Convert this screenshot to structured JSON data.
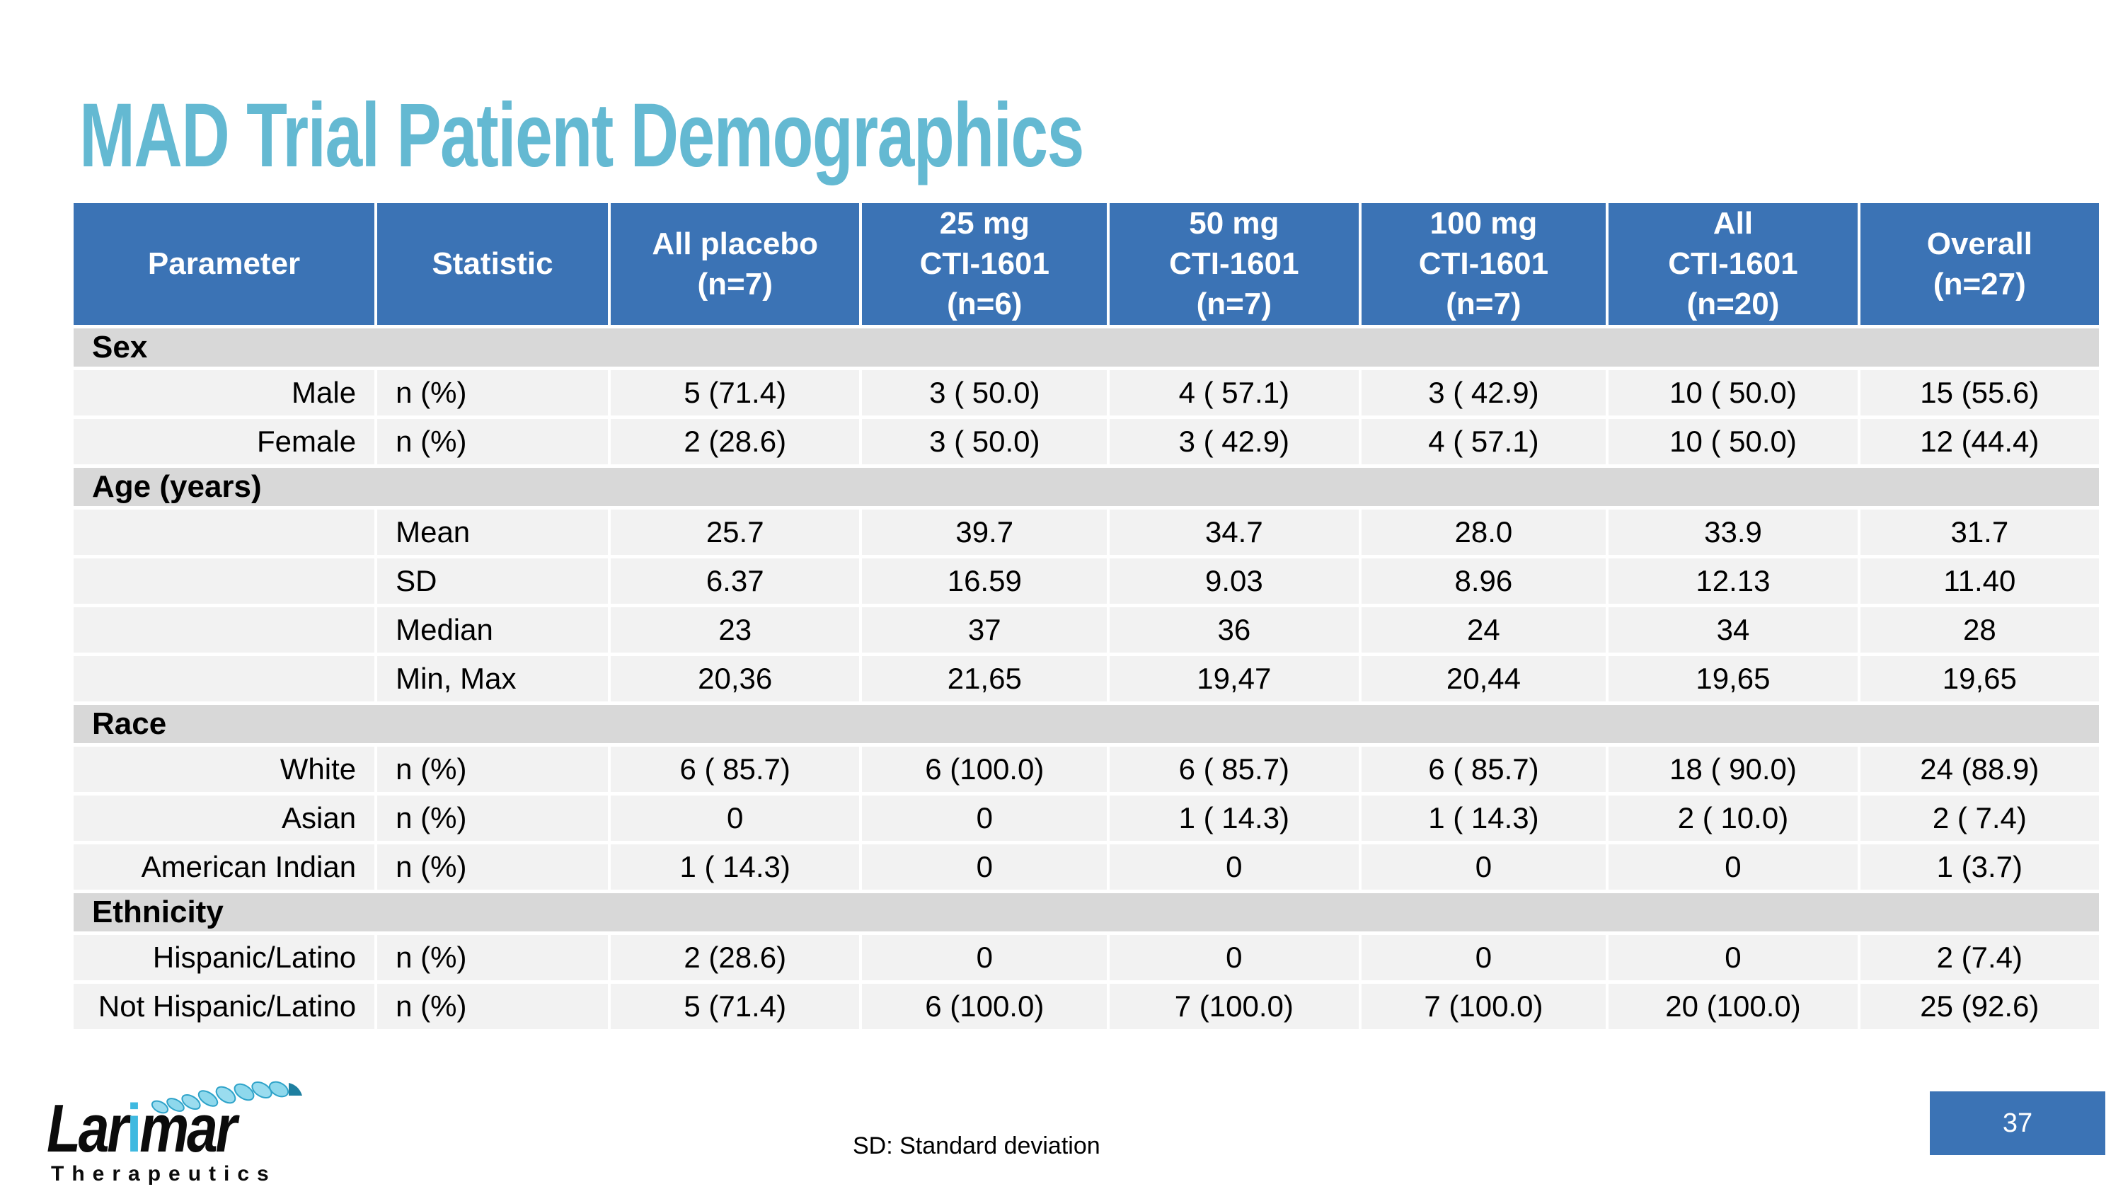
{
  "slide": {
    "title": "MAD Trial Patient Demographics",
    "footnote": "SD: Standard deviation",
    "page_number": "37"
  },
  "logo": {
    "name_pre": "Lar",
    "name_i": "i",
    "name_post": "mar",
    "tagline": "Therapeutics",
    "helix_icon": "dna-coil-icon"
  },
  "colors": {
    "header_blue": "#3B73B5",
    "title_teal": "#64B9D2",
    "section_band_gray": "#D8D8D8",
    "row_gray": "#F2F2F2",
    "logo_cyan": "#3FB9E0"
  },
  "table": {
    "columns": [
      "Parameter",
      "Statistic",
      "All placebo\n(n=7)",
      "25 mg\nCTI-1601\n(n=6)",
      "50 mg\nCTI-1601\n(n=7)",
      "100 mg\nCTI-1601\n(n=7)",
      "All\nCTI-1601\n(n=20)",
      "Overall\n(n=27)"
    ],
    "sections": [
      {
        "label": "Sex",
        "rows": [
          {
            "parameter": "Male",
            "statistic": "n (%)",
            "values": [
              "5 (71.4)",
              "3 ( 50.0)",
              "4 ( 57.1)",
              "3 ( 42.9)",
              "10 ( 50.0)",
              "15 (55.6)"
            ]
          },
          {
            "parameter": "Female",
            "statistic": "n (%)",
            "values": [
              "2 (28.6)",
              "3 ( 50.0)",
              "3 ( 42.9)",
              "4 ( 57.1)",
              "10 ( 50.0)",
              "12 (44.4)"
            ]
          }
        ]
      },
      {
        "label": "Age (years)",
        "rows": [
          {
            "parameter": "",
            "statistic": "Mean",
            "values": [
              "25.7",
              "39.7",
              "34.7",
              "28.0",
              "33.9",
              "31.7"
            ]
          },
          {
            "parameter": "",
            "statistic": "SD",
            "values": [
              "6.37",
              "16.59",
              "9.03",
              "8.96",
              "12.13",
              "11.40"
            ]
          },
          {
            "parameter": "",
            "statistic": "Median",
            "values": [
              "23",
              "37",
              "36",
              "24",
              "34",
              "28"
            ]
          },
          {
            "parameter": "",
            "statistic": "Min, Max",
            "values": [
              "20,36",
              "21,65",
              "19,47",
              "20,44",
              "19,65",
              "19,65"
            ]
          }
        ]
      },
      {
        "label": "Race",
        "rows": [
          {
            "parameter": "White",
            "statistic": "n (%)",
            "values": [
              "6 ( 85.7)",
              "6 (100.0)",
              "6 ( 85.7)",
              "6 ( 85.7)",
              "18 ( 90.0)",
              "24 (88.9)"
            ]
          },
          {
            "parameter": "Asian",
            "statistic": "n (%)",
            "values": [
              "0",
              "0",
              "1 ( 14.3)",
              "1 ( 14.3)",
              "2 ( 10.0)",
              "2 ( 7.4)"
            ]
          },
          {
            "parameter": "American Indian",
            "statistic": "n (%)",
            "values": [
              "1 ( 14.3)",
              "0",
              "0",
              "0",
              "0",
              "1 (3.7)"
            ]
          }
        ]
      },
      {
        "label": "Ethnicity",
        "rows": [
          {
            "parameter": "Hispanic/Latino",
            "statistic": "n (%)",
            "values": [
              "2 (28.6)",
              "0",
              "0",
              "0",
              "0",
              "2 (7.4)"
            ]
          },
          {
            "parameter": "Not Hispanic/Latino",
            "statistic": "n (%)",
            "values": [
              "5 (71.4)",
              "6 (100.0)",
              "7 (100.0)",
              "7 (100.0)",
              "20 (100.0)",
              "25 (92.6)"
            ]
          }
        ]
      }
    ]
  }
}
